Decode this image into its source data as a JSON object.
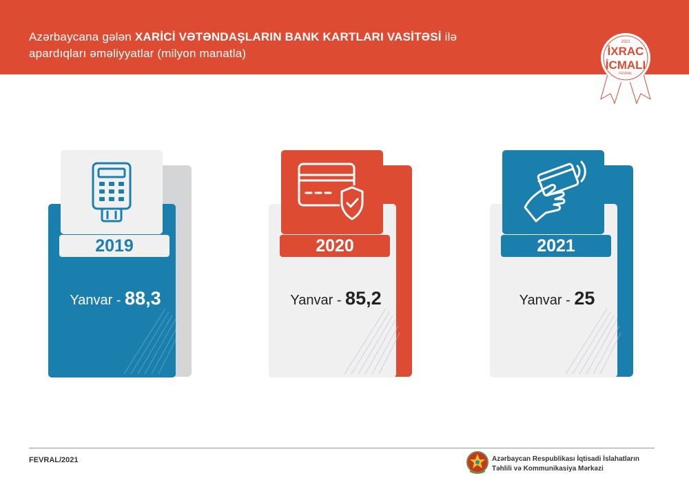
{
  "header": {
    "title_pre": "Azərbaycana gələn ",
    "title_bold": "XARİCİ VƏTƏNDAŞLARIN BANK KARTLARI VASİTƏSİ",
    "title_post": " ilə",
    "title_line2": "apardıqları əməliyyatlar (milyon manatla)"
  },
  "badge": {
    "year": "2021",
    "line1": "İXRAC",
    "line2": "İCMALI",
    "month": "FEVRAL"
  },
  "cards": [
    {
      "year": "2019",
      "label": "Yanvar - ",
      "value": "88,3",
      "icon": "pos-terminal-icon"
    },
    {
      "year": "2020",
      "label": "Yanvar - ",
      "value": "85,2",
      "icon": "card-shield-icon"
    },
    {
      "year": "2021",
      "label": "Yanvar - ",
      "value": "25",
      "icon": "contactless-card-icon"
    }
  ],
  "footer": {
    "date": "FEVRAL/2021",
    "org_line1": "Azərbaycan Respublikası İqtisadi İslahatların",
    "org_line2": "Təhlili və Kommunikasiya Mərkəzi"
  },
  "colors": {
    "red": "#dd4b33",
    "blue": "#1b7fae",
    "gray": "#d4d5d7",
    "light": "#f0f0f0"
  }
}
